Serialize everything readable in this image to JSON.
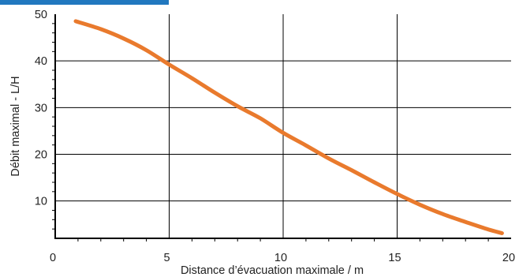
{
  "chart_data": {
    "type": "line",
    "xlabel": "Distance d’évacuation maximale / m",
    "ylabel": "Débit maximal - L/H",
    "xlim": [
      0,
      20
    ],
    "ylim": [
      2,
      50
    ],
    "x_ticks": [
      "0",
      "5",
      "10",
      "15",
      "20"
    ],
    "y_ticks": [
      "10",
      "20",
      "30",
      "40",
      "50"
    ],
    "grid": true,
    "colors": {
      "line": "#e97a2d",
      "accent_bar": "#2178bf",
      "grid": "#000000"
    },
    "series": [
      {
        "x": [
          0.9,
          2,
          3,
          4,
          5,
          6,
          7,
          8,
          9,
          10,
          11,
          12,
          13,
          14,
          15,
          16,
          17,
          18,
          19,
          19.6
        ],
        "values": [
          48.5,
          46.8,
          44.8,
          42.3,
          39.2,
          36.3,
          33.2,
          30.3,
          27.7,
          24.6,
          21.9,
          19.1,
          16.6,
          14,
          11.5,
          9.2,
          7.2,
          5.5,
          3.9,
          3.1
        ]
      }
    ]
  }
}
